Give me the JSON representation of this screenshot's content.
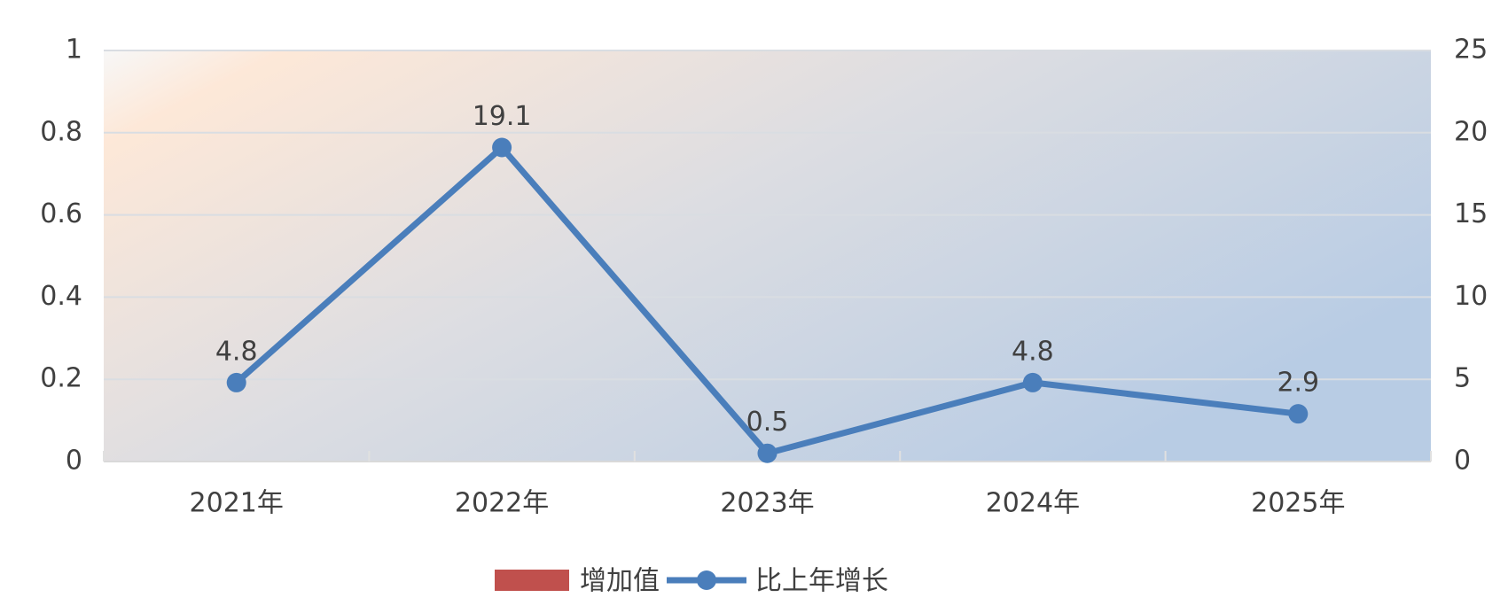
{
  "chart_data": {
    "type": "bar",
    "categories": [
      "2021年",
      "2022年",
      "2023年",
      "2024年",
      "2025年"
    ],
    "series": [
      {
        "name": "增加值",
        "color": "#c0504d",
        "values": [
          null,
          null,
          null,
          null,
          null
        ]
      },
      {
        "name": "比上年增长",
        "color": "#4a7ebb",
        "type": "line",
        "axis": "y2",
        "values": [
          4.8,
          19.1,
          0.5,
          4.8,
          2.9
        ]
      }
    ],
    "ylim": [
      0,
      1
    ],
    "yticks": [
      0,
      0.2,
      0.4,
      0.6,
      0.8,
      1
    ],
    "y2lim": [
      0,
      25
    ],
    "y2ticks": [
      0,
      5,
      10,
      15,
      20,
      25
    ],
    "grid": true,
    "legend": "bottom"
  }
}
